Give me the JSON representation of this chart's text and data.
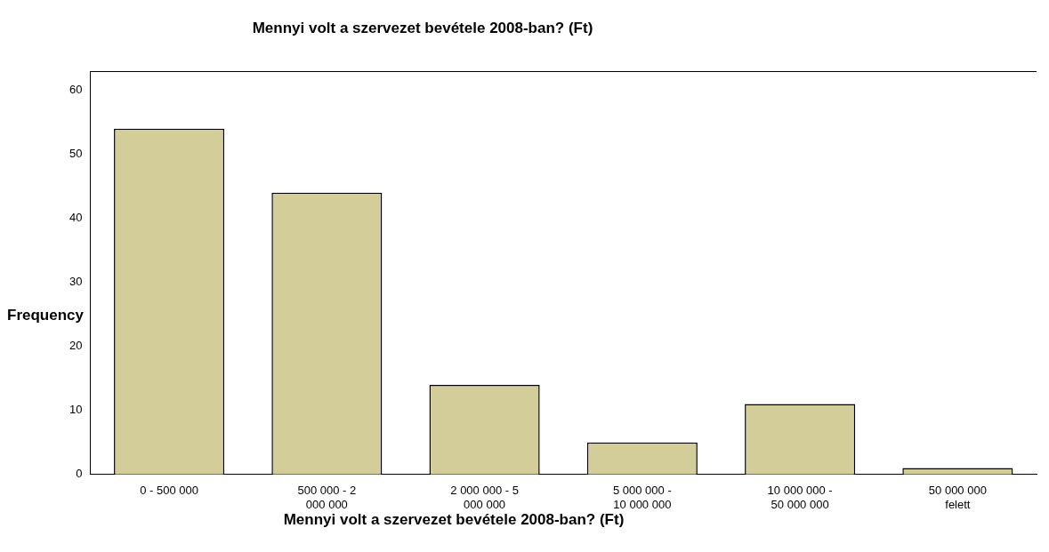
{
  "chart_data": {
    "type": "bar",
    "title": "Mennyi volt a szervezet bevétele 2008-ban? (Ft)",
    "xlabel": "Mennyi volt a szervezet bevétele 2008-ban? (Ft)",
    "ylabel": "Frequency",
    "categories": [
      "0 - 500 000",
      "500 000 - 2 000 000",
      "2 000 000 - 5 000 000",
      "5 000 000 - 10 000 000",
      "10 000 000 - 50 000 000",
      "50 000 000 felett"
    ],
    "values": [
      54,
      44,
      14,
      5,
      11,
      1
    ],
    "color": "#d3ce99",
    "ylim": [
      0,
      63
    ],
    "yticks": [
      0,
      10,
      20,
      30,
      40,
      50,
      60
    ],
    "grid": false,
    "legend": false
  }
}
